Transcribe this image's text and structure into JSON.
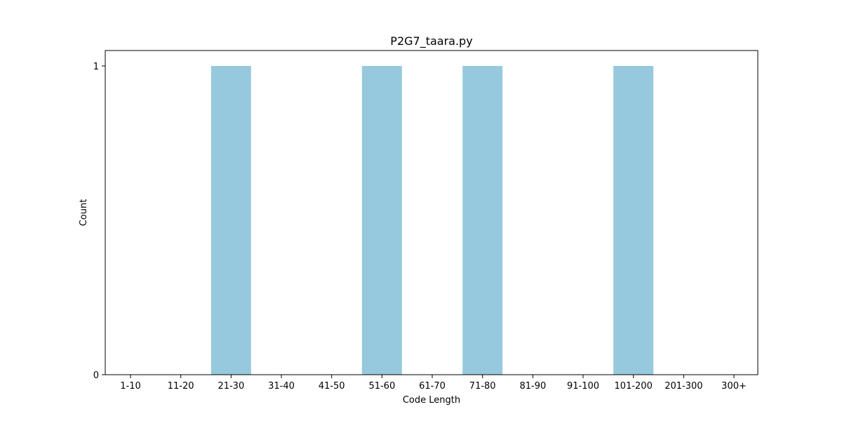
{
  "chart_data": {
    "type": "bar",
    "title": "P2G7_taara.py",
    "xlabel": "Code Length",
    "ylabel": "Count",
    "categories": [
      "1-10",
      "11-20",
      "21-30",
      "31-40",
      "41-50",
      "51-60",
      "61-70",
      "71-80",
      "81-90",
      "91-100",
      "101-200",
      "201-300",
      "300+"
    ],
    "values": [
      0,
      0,
      1,
      0,
      0,
      1,
      0,
      1,
      0,
      0,
      1,
      0,
      0
    ],
    "ylim": [
      0,
      1.05
    ],
    "yticks": [
      0,
      1
    ],
    "bar_color": "#96c9de",
    "grid": false,
    "legend": "none"
  }
}
